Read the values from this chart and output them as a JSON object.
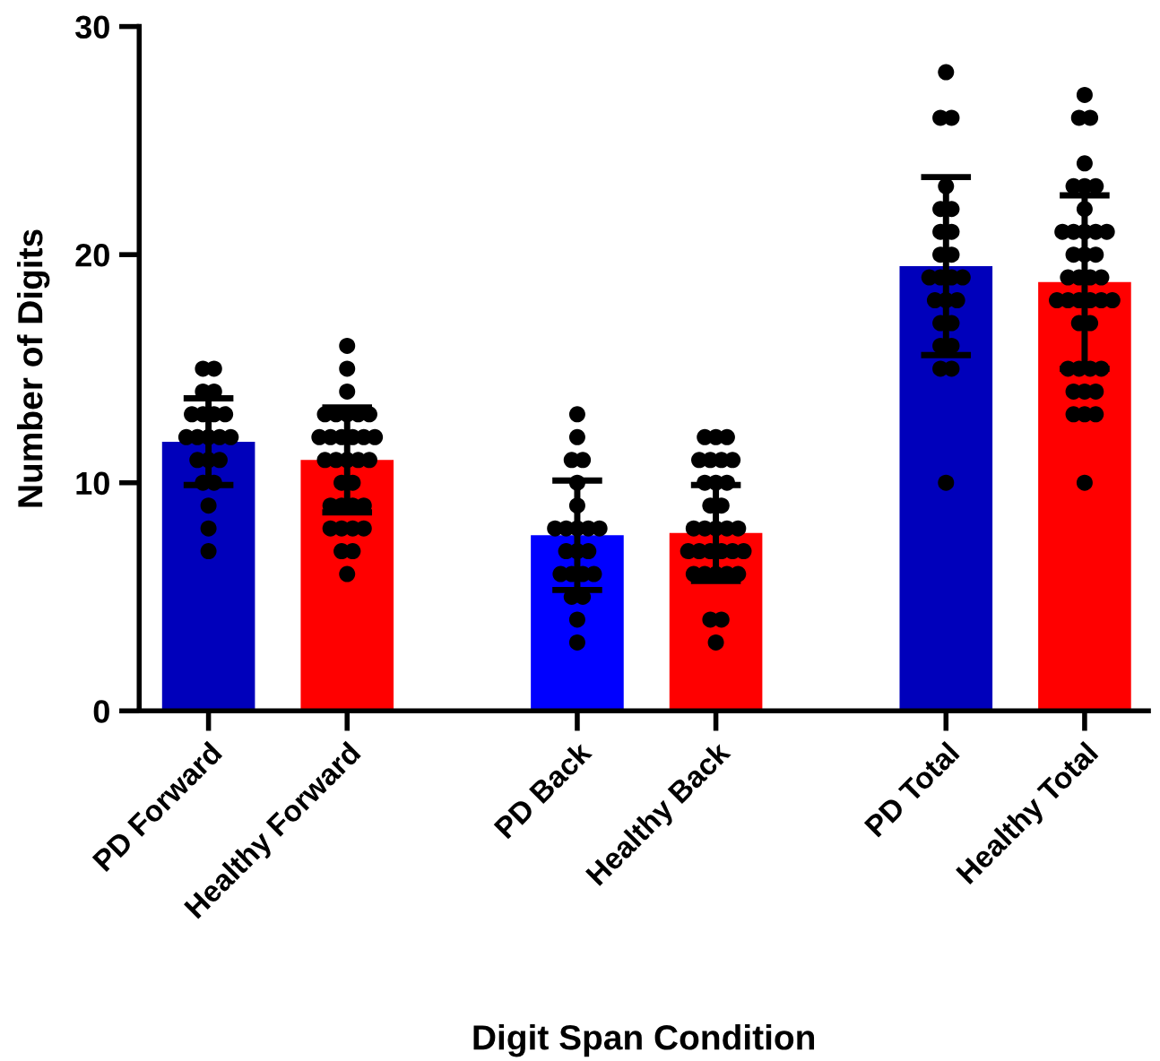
{
  "chart_data": {
    "type": "bar",
    "xlabel": "Digit Span Condition",
    "ylabel": "Number of Digits",
    "categories": [
      "PD Forward",
      "Healthy Forward",
      "PD Back",
      "Healthy Back",
      "PD Total",
      "Healthy Total"
    ],
    "ylim": [
      0,
      30
    ],
    "yticks": [
      0,
      10,
      20,
      30
    ],
    "grid": false,
    "legend": false,
    "series": [
      {
        "values": [
          11.8,
          11.0,
          7.7,
          7.8,
          19.5,
          18.8
        ],
        "colors": [
          "#0000bb",
          "#ff0000",
          "#0000ff",
          "#ff0000",
          "#0000bb",
          "#ff0000"
        ],
        "errors": [
          1.9,
          2.3,
          2.4,
          2.1,
          3.9,
          3.8
        ]
      },
      {
        "type": "scatter",
        "color": "#000000",
        "marker": "circle",
        "x": [
          "PD Forward",
          "PD Forward",
          "PD Forward",
          "PD Forward",
          "PD Forward",
          "PD Forward",
          "PD Forward",
          "PD Forward",
          "PD Forward",
          "PD Forward",
          "PD Forward",
          "PD Forward",
          "PD Forward",
          "PD Forward",
          "PD Forward",
          "PD Forward",
          "PD Forward",
          "PD Forward",
          "PD Forward",
          "PD Forward",
          "PD Forward",
          "Healthy Forward",
          "Healthy Forward",
          "Healthy Forward",
          "Healthy Forward",
          "Healthy Forward",
          "Healthy Forward",
          "Healthy Forward",
          "Healthy Forward",
          "Healthy Forward",
          "Healthy Forward",
          "Healthy Forward",
          "Healthy Forward",
          "Healthy Forward",
          "Healthy Forward",
          "Healthy Forward",
          "Healthy Forward",
          "Healthy Forward",
          "Healthy Forward",
          "Healthy Forward",
          "Healthy Forward",
          "Healthy Forward",
          "Healthy Forward",
          "Healthy Forward",
          "Healthy Forward",
          "Healthy Forward",
          "Healthy Forward",
          "Healthy Forward",
          "Healthy Forward",
          "Healthy Forward",
          "Healthy Forward",
          "Healthy Forward",
          "Healthy Forward",
          "PD Back",
          "PD Back",
          "PD Back",
          "PD Back",
          "PD Back",
          "PD Back",
          "PD Back",
          "PD Back",
          "PD Back",
          "PD Back",
          "PD Back",
          "PD Back",
          "PD Back",
          "PD Back",
          "PD Back",
          "PD Back",
          "PD Back",
          "PD Back",
          "PD Back",
          "PD Back",
          "PD Back",
          "PD Back",
          "Healthy Back",
          "Healthy Back",
          "Healthy Back",
          "Healthy Back",
          "Healthy Back",
          "Healthy Back",
          "Healthy Back",
          "Healthy Back",
          "Healthy Back",
          "Healthy Back",
          "Healthy Back",
          "Healthy Back",
          "Healthy Back",
          "Healthy Back",
          "Healthy Back",
          "Healthy Back",
          "Healthy Back",
          "Healthy Back",
          "Healthy Back",
          "Healthy Back",
          "Healthy Back",
          "Healthy Back",
          "Healthy Back",
          "Healthy Back",
          "Healthy Back",
          "Healthy Back",
          "Healthy Back",
          "Healthy Back",
          "Healthy Back",
          "Healthy Back",
          "Healthy Back",
          "PD Total",
          "PD Total",
          "PD Total",
          "PD Total",
          "PD Total",
          "PD Total",
          "PD Total",
          "PD Total",
          "PD Total",
          "PD Total",
          "PD Total",
          "PD Total",
          "PD Total",
          "PD Total",
          "PD Total",
          "PD Total",
          "PD Total",
          "PD Total",
          "PD Total",
          "PD Total",
          "PD Total",
          "PD Total",
          "PD Total",
          "PD Total",
          "Healthy Total",
          "Healthy Total",
          "Healthy Total",
          "Healthy Total",
          "Healthy Total",
          "Healthy Total",
          "Healthy Total",
          "Healthy Total",
          "Healthy Total",
          "Healthy Total",
          "Healthy Total",
          "Healthy Total",
          "Healthy Total",
          "Healthy Total",
          "Healthy Total",
          "Healthy Total",
          "Healthy Total",
          "Healthy Total",
          "Healthy Total",
          "Healthy Total",
          "Healthy Total",
          "Healthy Total",
          "Healthy Total",
          "Healthy Total",
          "Healthy Total",
          "Healthy Total",
          "Healthy Total",
          "Healthy Total",
          "Healthy Total",
          "Healthy Total",
          "Healthy Total",
          "Healthy Total",
          "Healthy Total",
          "Healthy Total",
          "Healthy Total",
          "Healthy Total",
          "Healthy Total",
          "Healthy Total",
          "Healthy Total"
        ],
        "values": [
          15,
          15,
          14,
          14,
          13,
          13,
          13,
          13,
          12,
          12,
          12,
          12,
          12,
          11,
          11,
          11,
          10,
          10,
          9,
          8,
          7,
          16,
          15,
          14,
          13,
          13,
          13,
          13,
          13,
          12,
          12,
          12,
          12,
          12,
          12,
          11,
          11,
          11,
          11,
          11,
          10,
          10,
          9,
          9,
          9,
          9,
          8,
          8,
          8,
          8,
          7,
          7,
          6,
          13,
          12,
          11,
          11,
          10,
          9,
          8,
          8,
          8,
          8,
          8,
          7,
          7,
          7,
          6,
          6,
          6,
          6,
          5,
          5,
          4,
          3,
          12,
          12,
          12,
          11,
          11,
          11,
          11,
          10,
          10,
          10,
          9,
          9,
          8,
          8,
          8,
          8,
          8,
          7,
          7,
          7,
          7,
          7,
          7,
          6,
          6,
          6,
          6,
          6,
          4,
          4,
          3,
          28,
          26,
          26,
          23,
          22,
          22,
          21,
          21,
          20,
          20,
          19,
          19,
          19,
          19,
          18,
          18,
          18,
          17,
          17,
          16,
          16,
          15,
          15,
          10,
          27,
          26,
          26,
          24,
          23,
          23,
          23,
          22,
          21,
          21,
          21,
          21,
          21,
          20,
          20,
          20,
          19,
          19,
          19,
          19,
          18,
          18,
          18,
          18,
          18,
          18,
          17,
          17,
          15,
          15,
          15,
          15,
          14,
          14,
          14,
          13,
          13,
          13,
          10
        ]
      }
    ]
  }
}
